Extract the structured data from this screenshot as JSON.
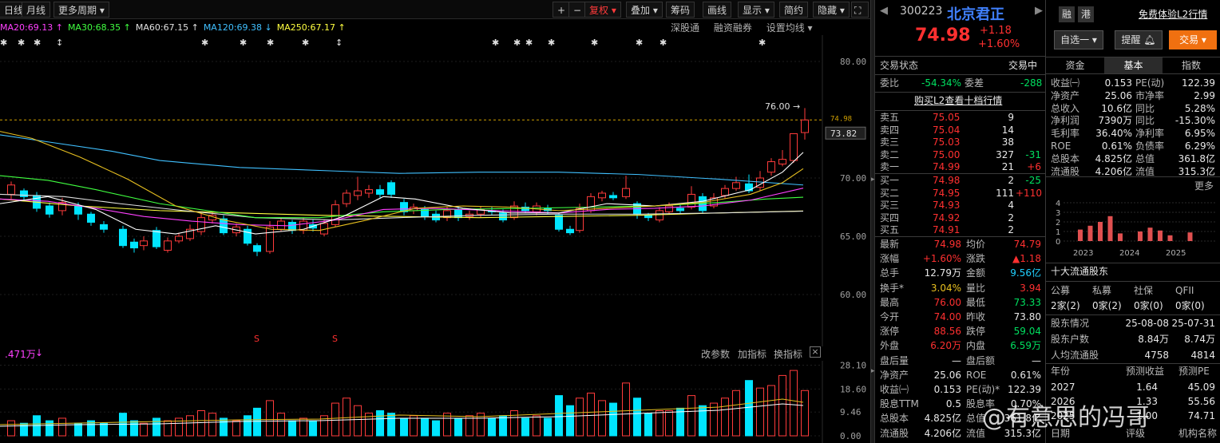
{
  "toolbar": {
    "left_tabs": [
      "日线",
      "月线",
      "更多周期"
    ],
    "buttons": [
      "+",
      "−",
      "复权",
      "叠加",
      "筹码",
      "画线",
      "显示",
      "简约",
      "隐藏"
    ]
  },
  "ma": [
    {
      "label": "MA20:69.13",
      "arrow": "↑",
      "color": "#ff40ff"
    },
    {
      "label": "MA30:68.35",
      "arrow": "↑",
      "color": "#40ff40"
    },
    {
      "label": "MA60:67.15",
      "arrow": "↑",
      "color": "#e0e0e0"
    },
    {
      "label": "MA120:69.38",
      "arrow": "↓",
      "color": "#40c0ff"
    },
    {
      "label": "MA250:67.17",
      "arrow": "↑",
      "color": "#ffff40"
    }
  ],
  "chart_links": [
    "深股通",
    "融资融券",
    "设置均线"
  ],
  "price_axis": [
    "80.00",
    "70.00",
    "65.00",
    "60.00"
  ],
  "price_current_tag": "73.82",
  "price_line_tag": "74.98",
  "high_annotation": "76.00",
  "volume_head": {
    "value": ".471万",
    "links": [
      "改参数",
      "加指标",
      "换指标"
    ]
  },
  "volume_axis": [
    "28.10",
    "18.60",
    "9.46",
    "0.00"
  ],
  "stock": {
    "code": "300223",
    "name": "北京君正",
    "badges": [
      "融",
      "港"
    ],
    "l2_link": "免费体验L2行情",
    "price": "74.98",
    "change": "+1.18",
    "change_pct": "+1.60%",
    "buttons": [
      "自选一",
      "提醒",
      "交易"
    ]
  },
  "trade_status": {
    "label": "交易状态",
    "value": "交易中"
  },
  "weibi": {
    "label1": "委比",
    "v1": "-54.34%",
    "label2": "委差",
    "v2": "-288"
  },
  "l2_promo": "购买L2查看十档行情",
  "asks": [
    {
      "label": "卖五",
      "price": "75.05",
      "vol": "9",
      "chg": ""
    },
    {
      "label": "卖四",
      "price": "75.04",
      "vol": "14",
      "chg": ""
    },
    {
      "label": "卖三",
      "price": "75.03",
      "vol": "38",
      "chg": ""
    },
    {
      "label": "卖二",
      "price": "75.00",
      "vol": "327",
      "chg": "-31"
    },
    {
      "label": "卖一",
      "price": "74.99",
      "vol": "21",
      "chg": "+6"
    }
  ],
  "bids": [
    {
      "label": "买一",
      "price": "74.98",
      "vol": "2",
      "chg": "-25"
    },
    {
      "label": "买二",
      "price": "74.95",
      "vol": "111",
      "chg": "+110"
    },
    {
      "label": "买三",
      "price": "74.93",
      "vol": "4",
      "chg": ""
    },
    {
      "label": "买四",
      "price": "74.92",
      "vol": "2",
      "chg": ""
    },
    {
      "label": "买五",
      "price": "74.91",
      "vol": "2",
      "chg": ""
    }
  ],
  "stats": [
    {
      "l1": "最新",
      "v1": "74.98",
      "c1": "r",
      "l2": "均价",
      "v2": "74.79",
      "c2": "r"
    },
    {
      "l1": "涨幅",
      "v1": "+1.60%",
      "c1": "r",
      "l2": "涨跌",
      "v2": "▲1.18",
      "c2": "r"
    },
    {
      "l1": "总手",
      "v1": "12.79万",
      "c1": "w",
      "l2": "金额",
      "v2": "9.56亿",
      "c2": "c"
    },
    {
      "l1": "换手*",
      "v1": "3.04%",
      "c1": "y",
      "l2": "量比",
      "v2": "3.94",
      "c2": "r"
    },
    {
      "l1": "最高",
      "v1": "76.00",
      "c1": "r",
      "l2": "最低",
      "v2": "73.33",
      "c2": "g"
    },
    {
      "l1": "今开",
      "v1": "74.00",
      "c1": "r",
      "l2": "昨收",
      "v2": "73.80",
      "c2": "w"
    },
    {
      "l1": "涨停",
      "v1": "88.56",
      "c1": "r",
      "l2": "跌停",
      "v2": "59.04",
      "c2": "g"
    },
    {
      "l1": "外盘",
      "v1": "6.20万",
      "c1": "r",
      "l2": "内盘",
      "v2": "6.59万",
      "c2": "g"
    },
    {
      "l1": "盘后量",
      "v1": "—",
      "c1": "w",
      "l2": "盘后额",
      "v2": "—",
      "c2": "w"
    },
    {
      "l1": "净资产",
      "v1": "25.06",
      "c1": "w",
      "l2": "ROE",
      "v2": "0.61%",
      "c2": "w"
    },
    {
      "l1": "收益㈠",
      "v1": "0.153",
      "c1": "w",
      "l2": "PE(动)*",
      "v2": "122.39",
      "c2": "w"
    },
    {
      "l1": "股息TTM",
      "v1": "0.5",
      "c1": "w",
      "l2": "股息率",
      "v2": "0.70%",
      "c2": "w"
    },
    {
      "l1": "总股本",
      "v1": "4.825亿",
      "c1": "w",
      "l2": "总值",
      "v2": "361.8亿",
      "c2": "w"
    },
    {
      "l1": "流通股",
      "v1": "4.206亿",
      "c1": "w",
      "l2": "流值",
      "v2": "315.3亿",
      "c2": "w"
    }
  ],
  "info_tabs": [
    "资金",
    "基本",
    "指数"
  ],
  "fundamentals": [
    {
      "l1": "收益㈠",
      "v1": "0.153",
      "l2": "PE(动)",
      "v2": "122.39"
    },
    {
      "l1": "净资产",
      "v1": "25.06",
      "l2": "市净率",
      "v2": "2.99"
    },
    {
      "l1": "总收入",
      "v1": "10.6亿",
      "l2": "同比",
      "v2": "5.28%"
    },
    {
      "l1": "净利润",
      "v1": "7390万",
      "l2": "同比",
      "v2": "-15.30%"
    },
    {
      "l1": "毛利率",
      "v1": "36.40%",
      "l2": "净利率",
      "v2": "6.95%"
    },
    {
      "l1": "ROE",
      "v1": "0.61%",
      "l2": "负债率",
      "v2": "6.29%"
    },
    {
      "l1": "总股本",
      "v1": "4.825亿",
      "l2": "总值",
      "v2": "361.8亿"
    },
    {
      "l1": "流通股",
      "v1": "4.206亿",
      "l2": "流值",
      "v2": "315.3亿"
    }
  ],
  "more_label": "更多",
  "mini_chart": {
    "y_ticks": [
      "4",
      "3",
      "2",
      "1",
      "0"
    ],
    "x_labels": [
      "2023",
      "2024",
      "2025"
    ],
    "values": [
      1.2,
      1.6,
      2.0,
      2.6,
      0.8,
      0,
      1.0,
      1.4,
      1.1,
      0.6,
      0,
      0.9
    ]
  },
  "top10": {
    "title": "十大流通股东",
    "cols": [
      "公募",
      "私募",
      "社保",
      "QFII"
    ],
    "vals": [
      "2家(2)",
      "0家(2)",
      "0家(0)",
      "0家(0)"
    ]
  },
  "holders": [
    {
      "l": "股东情况",
      "v1": "25-08-08",
      "v2": "25-07-31"
    },
    {
      "l": "股东户数",
      "v1": "8.84万",
      "v2": "8.74万"
    },
    {
      "l": "人均流通股",
      "v1": "4758",
      "v2": "4814"
    }
  ],
  "forecast": {
    "head": [
      "年份",
      "预测收益",
      "预测PE"
    ],
    "rows": [
      {
        "y": "2027",
        "e": "1.64",
        "pe": "45.09"
      },
      {
        "y": "2026",
        "e": "1.33",
        "pe": "55.56"
      },
      {
        "y": "2025",
        "e": "1.00",
        "pe": "74.71"
      }
    ],
    "foot": [
      "日期",
      "评级",
      "机构名称"
    ]
  },
  "watermark": "@有意思的冯哥"
}
